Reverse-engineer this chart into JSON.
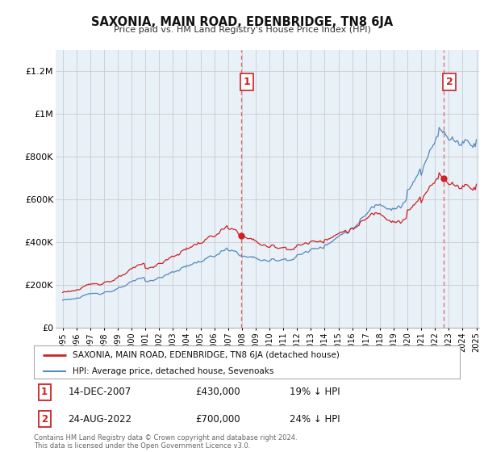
{
  "title": "SAXONIA, MAIN ROAD, EDENBRIDGE, TN8 6JA",
  "subtitle": "Price paid vs. HM Land Registry's House Price Index (HPI)",
  "hpi_label": "HPI: Average price, detached house, Sevenoaks",
  "price_label": "SAXONIA, MAIN ROAD, EDENBRIDGE, TN8 6JA (detached house)",
  "footnote": "Contains HM Land Registry data © Crown copyright and database right 2024.\nThis data is licensed under the Open Government Licence v3.0.",
  "sale1_date": "14-DEC-2007",
  "sale1_price": "£430,000",
  "sale1_hpi": "19% ↓ HPI",
  "sale2_date": "24-AUG-2022",
  "sale2_price": "£700,000",
  "sale2_hpi": "24% ↓ HPI",
  "sale1_x": 2007.96,
  "sale1_y": 430000,
  "sale2_x": 2022.63,
  "sale2_y": 700000,
  "ylim": [
    0,
    1300000
  ],
  "xlim": [
    1994.5,
    2025.2
  ],
  "yticks": [
    0,
    200000,
    400000,
    600000,
    800000,
    1000000,
    1200000
  ],
  "ytick_labels": [
    "£0",
    "£200K",
    "£400K",
    "£600K",
    "£800K",
    "£1M",
    "£1.2M"
  ],
  "hpi_color": "#5588bb",
  "price_color": "#cc2222",
  "vline_color": "#dd6666",
  "background_color": "#ffffff",
  "plot_bg_color": "#e8f0f8",
  "grid_color": "#cccccc"
}
